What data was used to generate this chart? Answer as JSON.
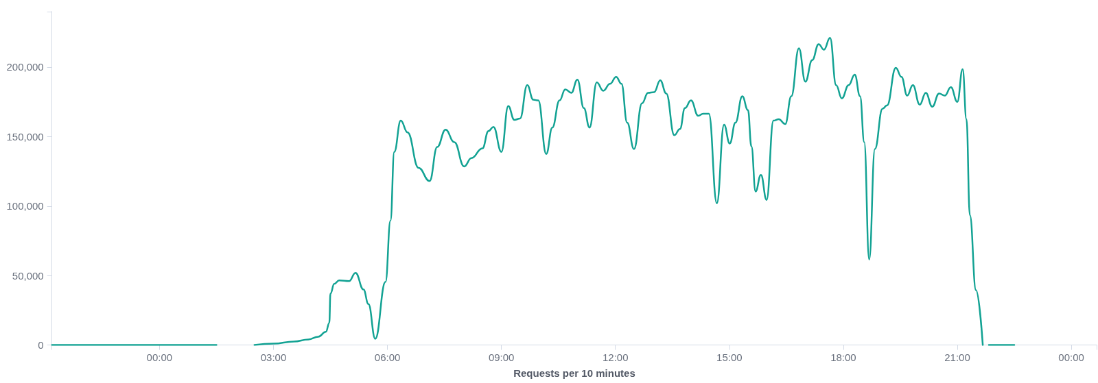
{
  "chart_data": {
    "type": "line",
    "xlabel": "Requests per 10 minutes",
    "x": [
      -2.83,
      1.5,
      2.0,
      2.5,
      3.0,
      3.54,
      3.92,
      4.18,
      4.38,
      4.47,
      4.5,
      4.6,
      4.73,
      4.99,
      5.16,
      5.37,
      5.5,
      5.68,
      5.95,
      6.08,
      6.18,
      6.35,
      6.53,
      6.82,
      7.11,
      7.31,
      7.53,
      7.76,
      8.02,
      8.21,
      8.5,
      8.66,
      8.79,
      9.0,
      9.18,
      9.34,
      9.49,
      9.68,
      9.84,
      9.97,
      10.18,
      10.34,
      10.53,
      10.68,
      10.84,
      11.0,
      11.17,
      11.32,
      11.51,
      11.68,
      11.86,
      12.02,
      12.16,
      12.31,
      12.49,
      12.7,
      12.86,
      13.02,
      13.18,
      13.34,
      13.55,
      13.7,
      13.83,
      13.99,
      14.18,
      14.31,
      14.46,
      14.67,
      14.86,
      15.01,
      15.16,
      15.34,
      15.49,
      15.58,
      15.69,
      15.83,
      15.98,
      16.16,
      16.3,
      16.47,
      16.63,
      16.83,
      17.0,
      17.18,
      17.35,
      17.49,
      17.65,
      17.81,
      17.96,
      18.14,
      18.3,
      18.44,
      18.55,
      18.68,
      18.83,
      19.03,
      19.15,
      19.38,
      19.53,
      19.68,
      19.83,
      20.01,
      20.17,
      20.34,
      20.52,
      20.67,
      20.83,
      21.0,
      21.14,
      21.24,
      21.33,
      21.49,
      21.67,
      21.75,
      21.83,
      22.5
    ],
    "series": [
      {
        "color": "#12a293",
        "values": [
          0,
          0,
          null,
          0,
          1000,
          2500,
          4000,
          6000,
          9500,
          16000,
          37000,
          44000,
          46500,
          46000,
          52000,
          40000,
          29500,
          4500,
          45500,
          89500,
          139000,
          161500,
          153000,
          127500,
          118000,
          142500,
          155000,
          146000,
          128500,
          134500,
          141500,
          154000,
          157000,
          139000,
          172000,
          162000,
          163000,
          187000,
          176500,
          176000,
          137500,
          156500,
          176000,
          184000,
          181500,
          191000,
          170500,
          156500,
          189000,
          183000,
          188000,
          193000,
          188000,
          160000,
          141000,
          174000,
          181500,
          182000,
          190500,
          181000,
          151000,
          155500,
          170500,
          176000,
          165000,
          166500,
          166500,
          102000,
          158500,
          145000,
          160000,
          179000,
          169000,
          143000,
          110500,
          122500,
          104500,
          161500,
          162500,
          159000,
          179000,
          213500,
          189500,
          205000,
          216500,
          212500,
          221000,
          187000,
          177500,
          187000,
          194500,
          179000,
          146000,
          61500,
          141000,
          170000,
          172500,
          199500,
          193000,
          179500,
          187000,
          173000,
          181500,
          171500,
          181000,
          179500,
          185500,
          175000,
          198500,
          162500,
          93500,
          39500,
          0,
          null,
          0,
          0
        ]
      }
    ],
    "xlim": [
      -2.83,
      24.67
    ],
    "xticks": [
      {
        "value": -2.83,
        "label": null
      },
      {
        "value": 0,
        "label": "00:00"
      },
      {
        "value": 3,
        "label": "03:00"
      },
      {
        "value": 6,
        "label": "06:00"
      },
      {
        "value": 9,
        "label": "09:00"
      },
      {
        "value": 12,
        "label": "12:00"
      },
      {
        "value": 15,
        "label": "15:00"
      },
      {
        "value": 18,
        "label": "18:00"
      },
      {
        "value": 21,
        "label": "21:00"
      },
      {
        "value": 24,
        "label": "00:00"
      },
      {
        "value": 24.67,
        "label": null
      }
    ],
    "ylim": [
      0,
      240000
    ],
    "yticks": [
      0,
      {
        "value": 50000,
        "label": "50,000"
      },
      {
        "value": 100000,
        "label": "100,000"
      },
      {
        "value": 150000,
        "label": "150,000"
      },
      {
        "value": 200000,
        "label": "200,000"
      },
      {
        "value": 240000,
        "label": null
      }
    ]
  }
}
